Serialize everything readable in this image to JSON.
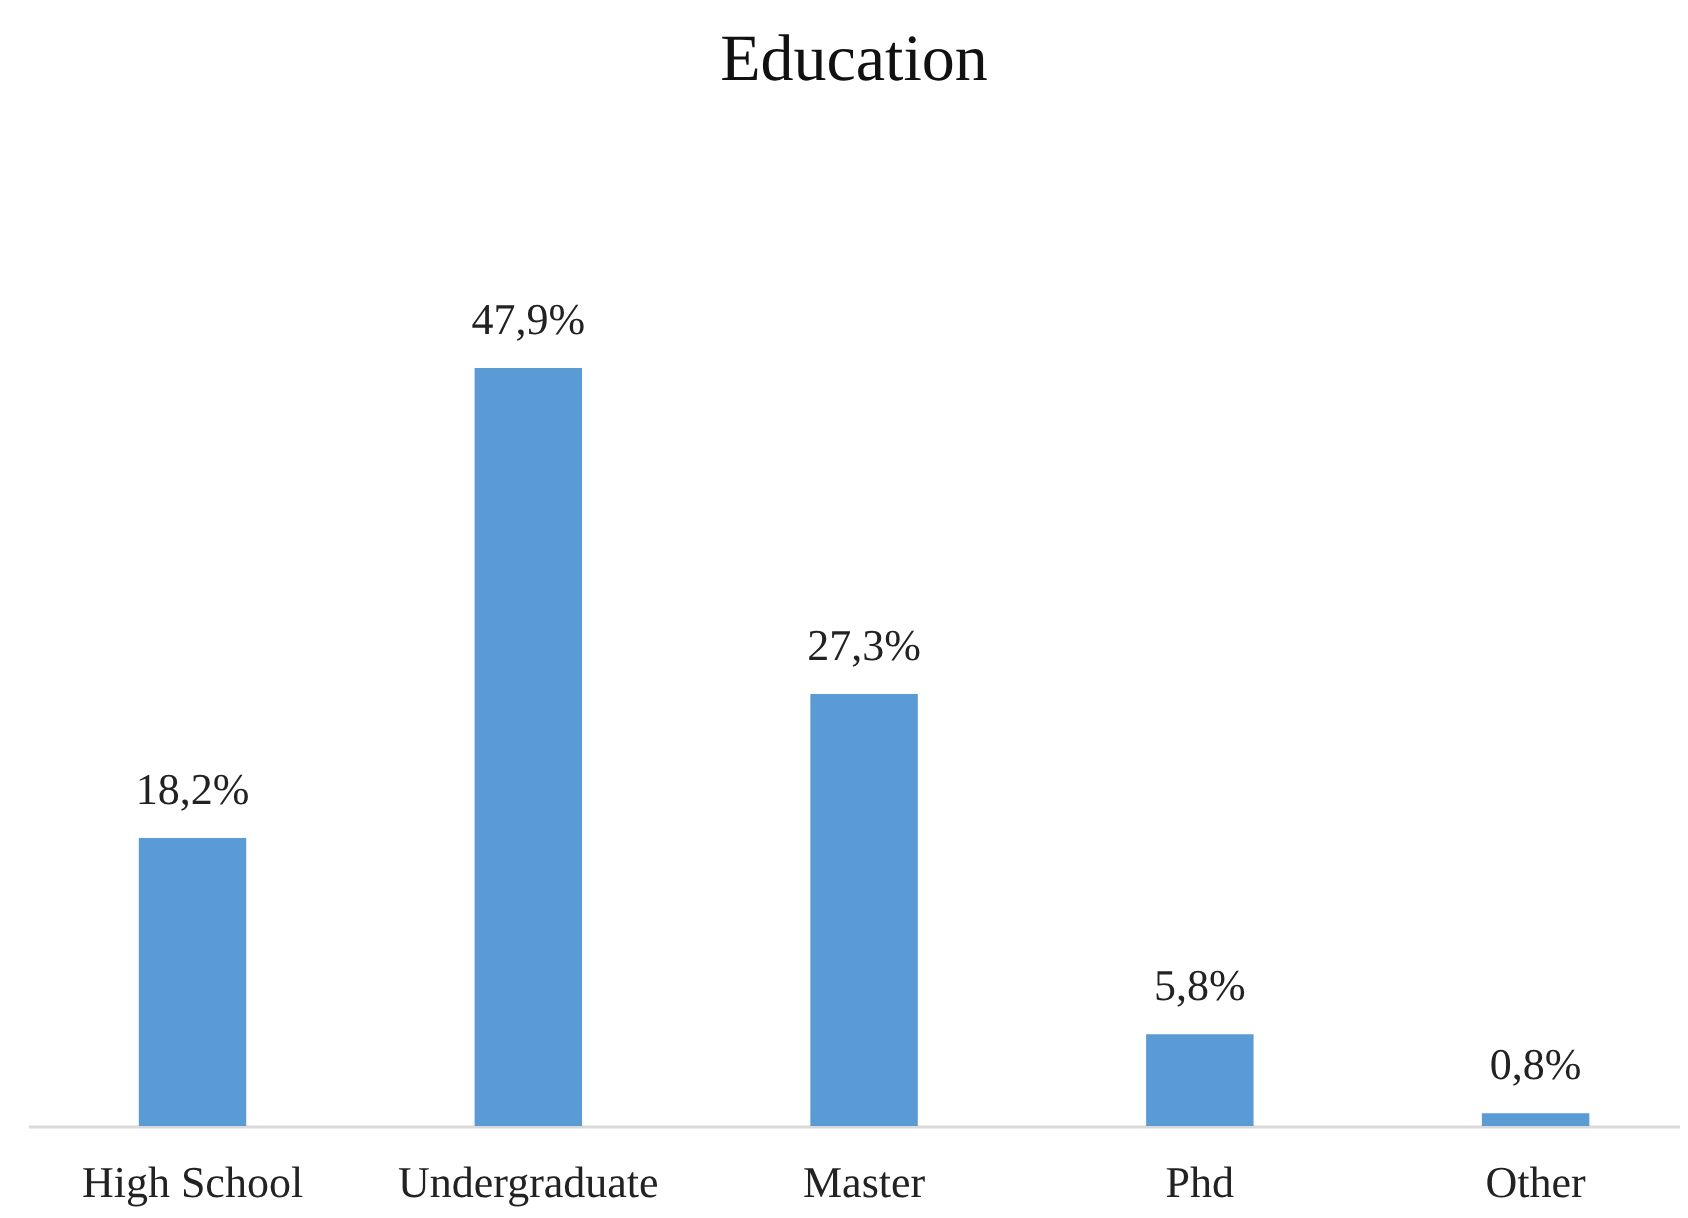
{
  "chart_data": {
    "type": "bar",
    "title": "Education",
    "categories": [
      "High School",
      "Undergraduate",
      "Master",
      "Phd",
      "Other"
    ],
    "values": [
      18.2,
      47.9,
      27.3,
      5.8,
      0.8
    ],
    "value_labels": [
      "18,2%",
      "47,9%",
      "27,3%",
      "5,8%",
      "0,8%"
    ],
    "color": "#5b9bd5"
  }
}
